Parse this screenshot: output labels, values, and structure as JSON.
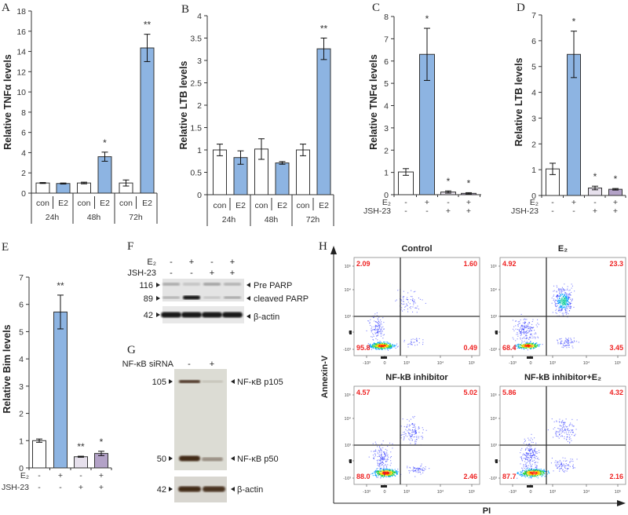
{
  "panels": {
    "A": "A",
    "B": "B",
    "C": "C",
    "D": "D",
    "E": "E",
    "F": "F",
    "G": "G",
    "H": "H"
  },
  "colors": {
    "control": "#ffffff",
    "e2": "#8db4e2",
    "jsh": "#e6e0ec",
    "jsh_e2": "#b3a2c7",
    "quadrant_text": "#ee2222"
  },
  "chart_data": [
    {
      "id": "A",
      "type": "bar",
      "ylabel": "Relative TNFα levels",
      "ylim": [
        0,
        18
      ],
      "yticks": [
        "0",
        "2",
        "4",
        "6",
        "8",
        "10",
        "12",
        "14",
        "16",
        "18"
      ],
      "categories": [
        "con",
        "E2",
        "con",
        "E2",
        "con",
        "E2"
      ],
      "groups": [
        "24h",
        "48h",
        "72h"
      ],
      "values": [
        1.0,
        0.95,
        1.0,
        3.6,
        1.0,
        14.35
      ],
      "errors": [
        0.05,
        0.05,
        0.08,
        0.45,
        0.3,
        1.35
      ],
      "significance": [
        "",
        "",
        "",
        "*",
        "",
        "**"
      ],
      "fills": [
        "control",
        "e2",
        "control",
        "e2",
        "control",
        "e2"
      ]
    },
    {
      "id": "B",
      "type": "bar",
      "ylabel": "Relative LTB levels",
      "ylim": [
        0,
        4
      ],
      "yticks": [
        "0",
        "0.5",
        "1",
        "1.5",
        "2",
        "2.5",
        "3",
        "3.5",
        "4"
      ],
      "categories": [
        "con",
        "E2",
        "con",
        "E2",
        "con",
        "E2"
      ],
      "groups": [
        "24h",
        "48h",
        "72h"
      ],
      "values": [
        1.0,
        0.83,
        1.02,
        0.71,
        1.0,
        3.26
      ],
      "errors": [
        0.13,
        0.15,
        0.23,
        0.03,
        0.13,
        0.24
      ],
      "significance": [
        "",
        "",
        "",
        "",
        "",
        "**"
      ],
      "fills": [
        "control",
        "e2",
        "control",
        "e2",
        "control",
        "e2"
      ]
    },
    {
      "id": "C",
      "type": "bar",
      "ylabel": "Relative TNFα levels",
      "ylim": [
        0,
        8
      ],
      "yticks": [
        "0",
        "1",
        "2",
        "3",
        "4",
        "5",
        "6",
        "7",
        "8"
      ],
      "treatments": [
        {
          "name": "E₂",
          "values": [
            "-",
            "+",
            "-",
            "+"
          ]
        },
        {
          "name": "JSH-23",
          "values": [
            "-",
            "-",
            "+",
            "+"
          ]
        }
      ],
      "values": [
        1.02,
        6.3,
        0.12,
        0.06
      ],
      "errors": [
        0.15,
        1.17,
        0.05,
        0.03
      ],
      "significance": [
        "",
        "*",
        "*",
        "*"
      ],
      "fills": [
        "control",
        "e2",
        "jsh",
        "jsh_e2"
      ]
    },
    {
      "id": "D",
      "type": "bar",
      "ylabel": "Relative LTB levels",
      "ylim": [
        0,
        7
      ],
      "yticks": [
        "0",
        "1",
        "2",
        "3",
        "4",
        "5",
        "6",
        "7"
      ],
      "treatments": [
        {
          "name": "E₂",
          "values": [
            "-",
            "+",
            "-",
            "+"
          ]
        },
        {
          "name": "JSH-23",
          "values": [
            "-",
            "-",
            "+",
            "+"
          ]
        }
      ],
      "values": [
        1.03,
        5.47,
        0.29,
        0.24
      ],
      "errors": [
        0.22,
        0.9,
        0.07,
        0.03
      ],
      "significance": [
        "",
        "*",
        "*",
        "*"
      ],
      "fills": [
        "control",
        "e2",
        "jsh",
        "jsh_e2"
      ]
    },
    {
      "id": "E",
      "type": "bar",
      "ylabel": "Relative Bim levels",
      "ylim": [
        0,
        7
      ],
      "yticks": [
        "0",
        "1",
        "2",
        "3",
        "4",
        "5",
        "6",
        "7"
      ],
      "treatments": [
        {
          "name": "E₂",
          "values": [
            "-",
            "+",
            "-",
            "+"
          ]
        },
        {
          "name": "JSH-23",
          "values": [
            "-",
            "-",
            "+",
            "+"
          ]
        }
      ],
      "values": [
        1.0,
        5.72,
        0.41,
        0.53
      ],
      "errors": [
        0.06,
        0.62,
        0.02,
        0.08
      ],
      "significance": [
        "",
        "**",
        "**",
        "*"
      ],
      "fills": [
        "control",
        "e2",
        "jsh",
        "jsh_e2"
      ]
    }
  ],
  "blot_F": {
    "treatments": [
      {
        "name": "E₂",
        "values": [
          "-",
          "+",
          "-",
          "+"
        ]
      },
      {
        "name": "JSH-23",
        "values": [
          "-",
          "-",
          "+",
          "+"
        ]
      }
    ],
    "markers": [
      "116",
      "89",
      "42"
    ],
    "bands": [
      "Pre PARP",
      "cleaved PARP",
      "β-actin"
    ]
  },
  "blot_G": {
    "treatment": {
      "name": "NF-κB siRNA",
      "values": [
        "-",
        "+"
      ]
    },
    "markers": [
      "105",
      "50",
      "42"
    ],
    "bands": [
      "NF-κB p105",
      "NF-κB p50",
      "β-actin"
    ]
  },
  "flow_H": {
    "y_axis_label": "Annexin-V",
    "x_axis_label": "PI",
    "y_ticks": [
      "10⁵",
      "10⁴",
      "10³",
      "0",
      "-10³"
    ],
    "x_ticks": [
      "-10³",
      "0",
      "10³",
      "10⁴",
      "10⁵"
    ],
    "plots": [
      {
        "title": "Control",
        "quadrants": {
          "ul": "2.09",
          "ur": "1.60",
          "ll": "95.8",
          "lr": "0.49"
        }
      },
      {
        "title": "E₂",
        "quadrants": {
          "ul": "4.92",
          "ur": "23.3",
          "ll": "68.4",
          "lr": "3.45"
        }
      },
      {
        "title": "NF-kB inhibitor",
        "quadrants": {
          "ul": "4.57",
          "ur": "5.02",
          "ll": "88.0",
          "lr": "2.46"
        }
      },
      {
        "title": "NF-kB inhibitor+E₂",
        "quadrants": {
          "ul": "5.86",
          "ur": "4.32",
          "ll": "87.7",
          "lr": "2.16"
        }
      }
    ]
  }
}
